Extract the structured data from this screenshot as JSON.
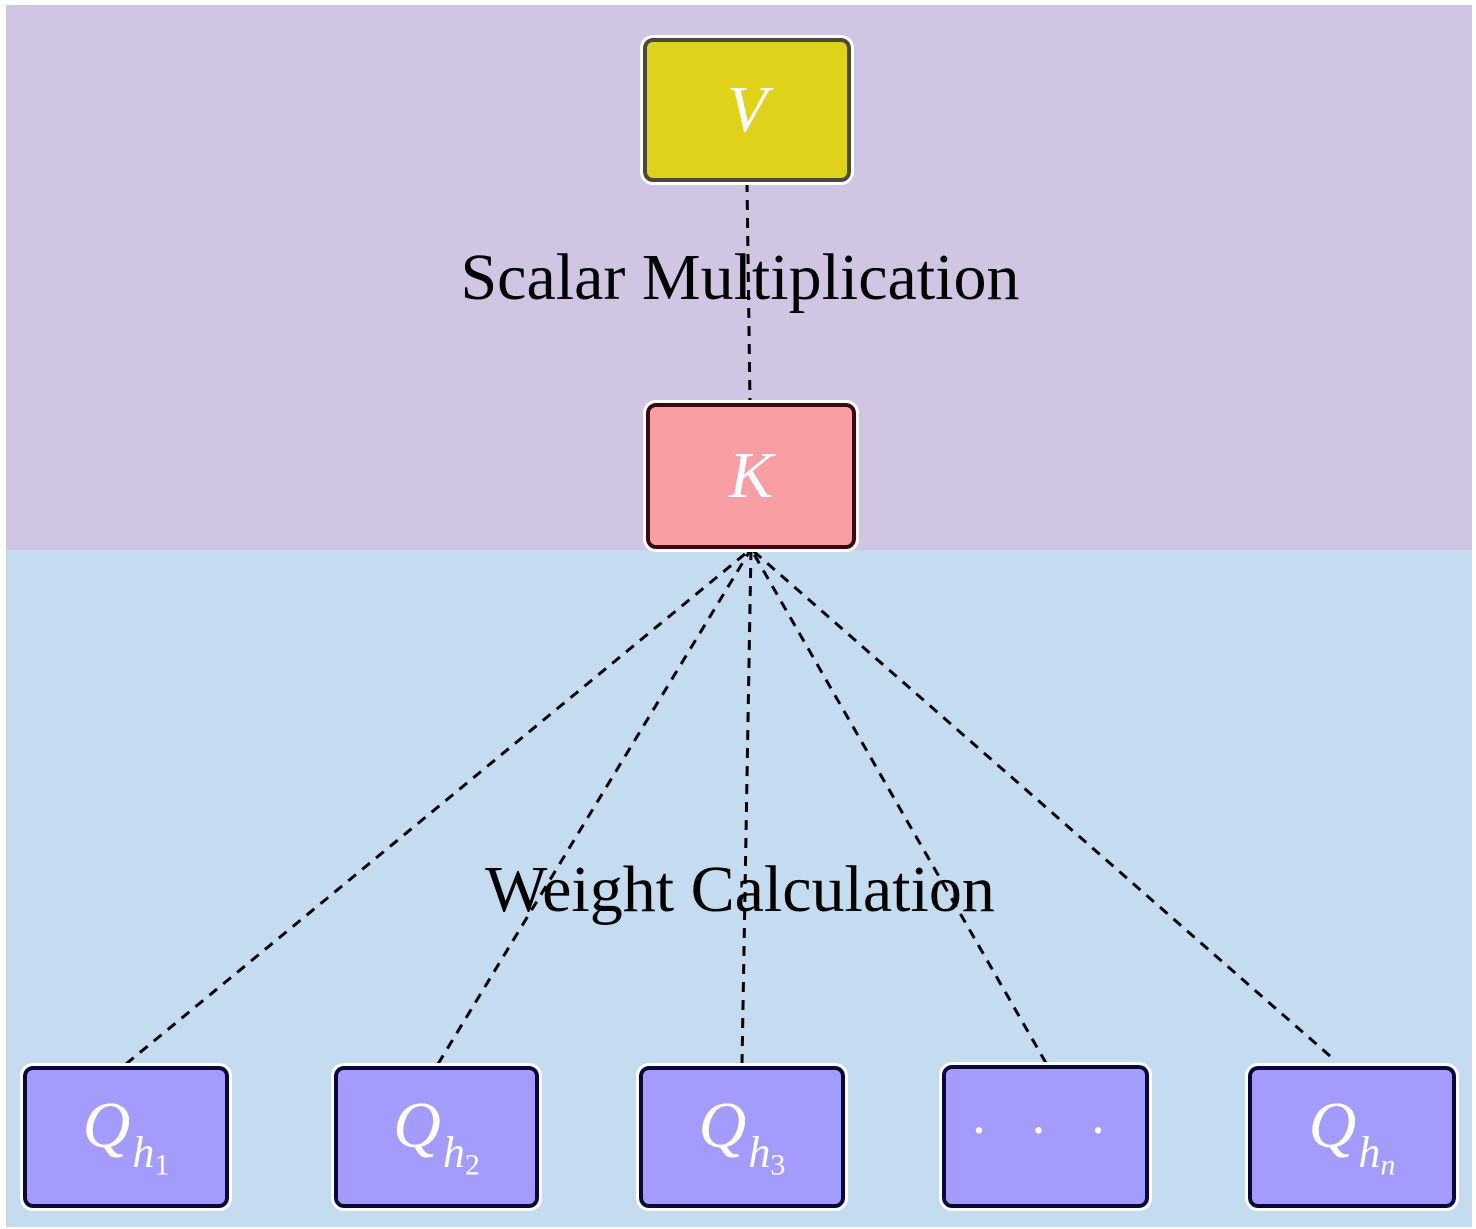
{
  "colors": {
    "region_top": "#d0c6e4",
    "region_bottom": "#c5dcf0",
    "node_v_fill": "#e0d11b",
    "node_v_border": "#4a4a3a",
    "node_k_fill": "#f89ea4",
    "node_k_border": "#3a0a0e",
    "node_q_fill": "#a39cfc",
    "node_q_border": "#0a0838",
    "edge": "#000000"
  },
  "labels": {
    "top_stage": "Scalar Multiplication",
    "bottom_stage": "Weight Calculation"
  },
  "nodes": {
    "v": {
      "label": "V"
    },
    "k": {
      "label": "K"
    },
    "q": [
      {
        "label": "Q",
        "sub": "h",
        "subsub": "1"
      },
      {
        "label": "Q",
        "sub": "h",
        "subsub": "2"
      },
      {
        "label": "Q",
        "sub": "h",
        "subsub": "3"
      },
      {
        "label": "· · ·"
      },
      {
        "label": "Q",
        "sub": "h",
        "subsub": "n"
      }
    ]
  },
  "edges": [
    {
      "from": "v",
      "to": "k",
      "style": "dashed"
    },
    {
      "from": "q1",
      "to": "k",
      "style": "dashed"
    },
    {
      "from": "q2",
      "to": "k",
      "style": "dashed"
    },
    {
      "from": "q3",
      "to": "k",
      "style": "dashed"
    },
    {
      "from": "q4",
      "to": "k",
      "style": "dashed"
    },
    {
      "from": "q5",
      "to": "k",
      "style": "dashed"
    }
  ]
}
